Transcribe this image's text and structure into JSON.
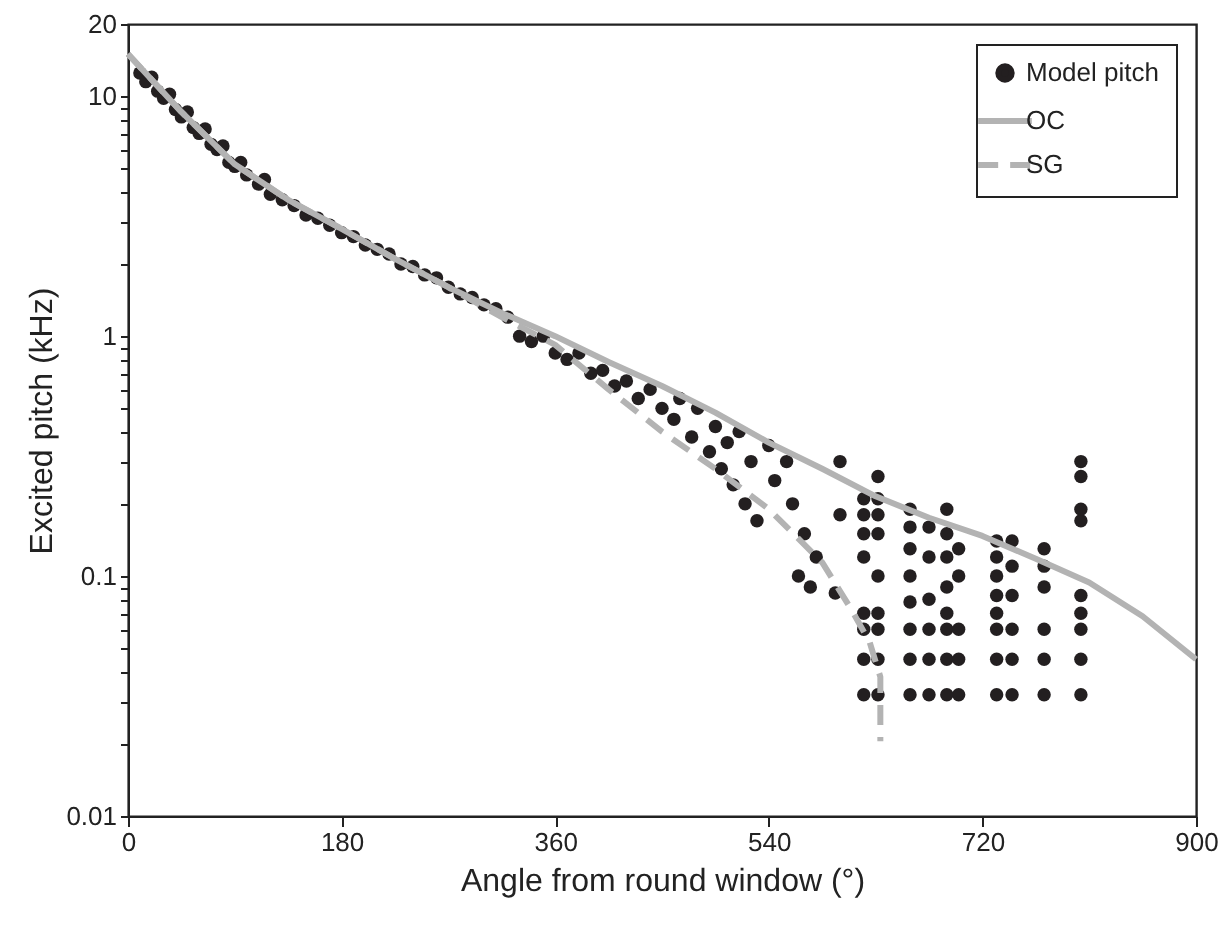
{
  "chart_data": {
    "type": "scatter",
    "xlabel": "Angle from round window (°)",
    "ylabel": "Excited pitch (kHz)",
    "log": "y",
    "grid": false,
    "legend": "top right",
    "xlim": [
      0,
      900
    ],
    "xticks": [
      0,
      180,
      360,
      540,
      720,
      900
    ],
    "ylim": [
      0.01,
      20
    ],
    "yticks": [
      0.01,
      {
        "value": 0.02,
        "label": null
      },
      {
        "value": 0.03,
        "label": null
      },
      {
        "value": 0.04,
        "label": null
      },
      {
        "value": 0.05,
        "label": null
      },
      {
        "value": 0.06,
        "label": null
      },
      {
        "value": 0.07,
        "label": null
      },
      {
        "value": 0.08,
        "label": null
      },
      {
        "value": 0.09,
        "label": null
      },
      0.1,
      {
        "value": 0.2,
        "label": null
      },
      {
        "value": 0.3,
        "label": null
      },
      {
        "value": 0.4,
        "label": null
      },
      {
        "value": 0.5,
        "label": null
      },
      {
        "value": 0.6,
        "label": null
      },
      {
        "value": 0.7,
        "label": null
      },
      {
        "value": 0.8,
        "label": null
      },
      {
        "value": 0.9,
        "label": null
      },
      1,
      {
        "value": 2,
        "label": null
      },
      {
        "value": 3,
        "label": null
      },
      {
        "value": 4,
        "label": null
      },
      {
        "value": 5,
        "label": null
      },
      {
        "value": 6,
        "label": null
      },
      {
        "value": 7,
        "label": null
      },
      {
        "value": 8,
        "label": null
      },
      {
        "value": 9,
        "label": null
      },
      10,
      20
    ],
    "series": [
      {
        "name": "Model pitch",
        "marker": "circle",
        "color": "#231f20",
        "x": [
          10,
          15,
          20,
          25,
          30,
          35,
          40,
          45,
          50,
          55,
          60,
          65,
          70,
          75,
          80,
          85,
          90,
          95,
          100,
          110,
          115,
          120,
          130,
          140,
          150,
          160,
          170,
          180,
          190,
          200,
          210,
          220,
          230,
          240,
          250,
          260,
          270,
          280,
          290,
          300,
          310,
          320,
          330,
          340,
          350,
          360,
          370,
          380,
          390,
          400,
          410,
          420,
          430,
          440,
          450,
          460,
          465,
          475,
          480,
          490,
          495,
          500,
          505,
          510,
          515,
          520,
          525,
          530,
          540,
          545,
          555,
          560,
          565,
          570,
          575,
          580,
          596,
          600,
          600,
          620,
          620,
          620,
          620,
          620,
          620,
          620,
          620,
          632,
          632,
          632,
          632,
          632,
          632,
          632,
          632,
          632,
          659,
          659,
          659,
          659,
          659,
          659,
          659,
          659,
          675,
          675,
          675,
          675,
          675,
          675,
          690,
          690,
          690,
          690,
          690,
          690,
          690,
          690,
          700,
          700,
          700,
          700,
          700,
          732,
          732,
          732,
          732,
          732,
          732,
          732,
          732,
          745,
          745,
          745,
          745,
          745,
          745,
          772,
          772,
          772,
          772,
          772,
          772,
          803,
          803,
          803,
          803,
          803,
          803,
          803,
          803,
          803
        ],
        "values": [
          12.5,
          11.5,
          12,
          10.5,
          9.8,
          10.2,
          8.8,
          8.2,
          8.6,
          7.4,
          7.0,
          7.3,
          6.3,
          6.0,
          6.2,
          5.3,
          5.1,
          5.3,
          4.7,
          4.3,
          4.5,
          3.9,
          3.7,
          3.5,
          3.2,
          3.1,
          2.9,
          2.7,
          2.6,
          2.4,
          2.3,
          2.2,
          2.0,
          1.95,
          1.8,
          1.75,
          1.6,
          1.5,
          1.45,
          1.35,
          1.3,
          1.2,
          1.0,
          0.95,
          1.0,
          0.85,
          0.8,
          0.85,
          0.7,
          0.72,
          0.62,
          0.65,
          0.55,
          0.6,
          0.5,
          0.45,
          0.55,
          0.38,
          0.5,
          0.33,
          0.42,
          0.28,
          0.36,
          0.24,
          0.4,
          0.2,
          0.3,
          0.17,
          0.35,
          0.25,
          0.3,
          0.2,
          0.1,
          0.15,
          0.09,
          0.12,
          0.085,
          0.18,
          0.3,
          0.032,
          0.045,
          0.06,
          0.07,
          0.12,
          0.15,
          0.18,
          0.21,
          0.032,
          0.045,
          0.06,
          0.07,
          0.1,
          0.15,
          0.18,
          0.21,
          0.26,
          0.032,
          0.045,
          0.06,
          0.078,
          0.1,
          0.13,
          0.16,
          0.19,
          0.032,
          0.045,
          0.06,
          0.08,
          0.12,
          0.16,
          0.032,
          0.045,
          0.06,
          0.07,
          0.09,
          0.12,
          0.15,
          0.19,
          0.032,
          0.045,
          0.06,
          0.1,
          0.13,
          0.032,
          0.045,
          0.06,
          0.07,
          0.083,
          0.1,
          0.12,
          0.14,
          0.032,
          0.045,
          0.06,
          0.083,
          0.11,
          0.14,
          0.032,
          0.045,
          0.06,
          0.09,
          0.11,
          0.13,
          0.032,
          0.045,
          0.06,
          0.07,
          0.083,
          0.17,
          0.19,
          0.26,
          0.3
        ]
      },
      {
        "name": "OC",
        "type": "line",
        "line_style": "solid",
        "color": "#b3b3b3",
        "x": [
          0,
          45,
          90,
          135,
          180,
          225,
          270,
          315,
          360,
          405,
          450,
          495,
          540,
          585,
          630,
          675,
          720,
          765,
          810,
          855,
          900
        ],
        "values": [
          15,
          8.6,
          5.2,
          3.7,
          2.8,
          2.1,
          1.6,
          1.25,
          1.0,
          0.78,
          0.62,
          0.48,
          0.36,
          0.28,
          0.215,
          0.175,
          0.147,
          0.118,
          0.094,
          0.068,
          0.045
        ]
      },
      {
        "name": "SG",
        "type": "line",
        "line_style": "dashed",
        "color": "#b3b3b3",
        "x": [
          0,
          45,
          90,
          135,
          180,
          225,
          270,
          315,
          360,
          405,
          450,
          495,
          540,
          585,
          610,
          625,
          634,
          634
        ],
        "values": [
          15,
          8.6,
          5.2,
          3.7,
          2.8,
          2.1,
          1.6,
          1.2,
          0.92,
          0.6,
          0.4,
          0.28,
          0.19,
          0.114,
          0.072,
          0.053,
          0.038,
          0.0205
        ]
      }
    ]
  }
}
